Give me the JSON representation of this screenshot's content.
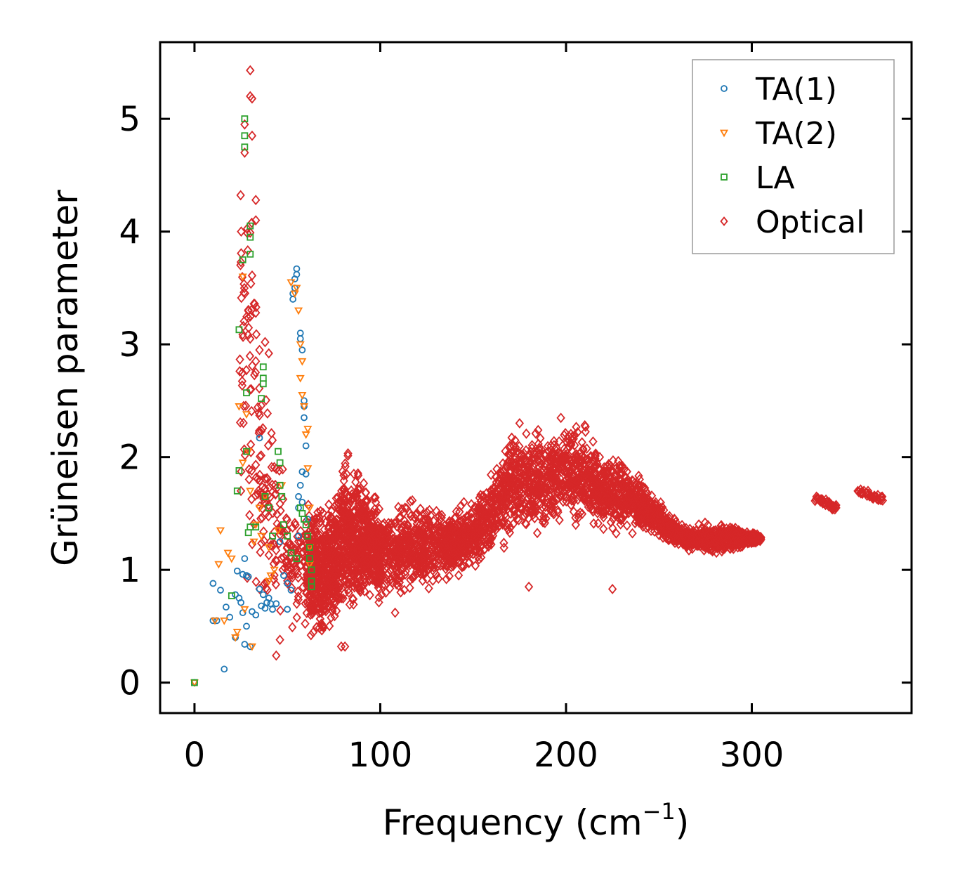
{
  "chart_data": {
    "type": "scatter",
    "title": "",
    "xlabel": "Frequency (cm",
    "xlabel_sup": "−1",
    "xlabel_close": ")",
    "ylabel": "Grüneisen parameter",
    "xlim": [
      -18.5,
      386
    ],
    "ylim": [
      -0.27,
      5.68
    ],
    "xticks": [
      0,
      100,
      200,
      300
    ],
    "xtick_labels": [
      "0",
      "100",
      "200",
      "300"
    ],
    "yticks": [
      0,
      1,
      2,
      3,
      4,
      5
    ],
    "ytick_labels": [
      "0",
      "1",
      "2",
      "3",
      "4",
      "5"
    ],
    "grid": false,
    "legend_position": "top-right",
    "series": [
      {
        "name": "TA(1)",
        "marker": "circle",
        "color": "#1f77b4",
        "points": [
          [
            0,
            0
          ],
          [
            10,
            0.55
          ],
          [
            10,
            0.88
          ],
          [
            12,
            0.55
          ],
          [
            14,
            0.82
          ],
          [
            16,
            0.12
          ],
          [
            17,
            0.67
          ],
          [
            19,
            0.58
          ],
          [
            22,
            0.4
          ],
          [
            22,
            0.78
          ],
          [
            23,
            0.99
          ],
          [
            24,
            0.75
          ],
          [
            25,
            0.71
          ],
          [
            26,
            0.62
          ],
          [
            26,
            0.96
          ],
          [
            27,
            0.34
          ],
          [
            27,
            1.1
          ],
          [
            28,
            0.95
          ],
          [
            28,
            0.5
          ],
          [
            29,
            0.94
          ],
          [
            30,
            0.32
          ],
          [
            31,
            0.63
          ],
          [
            33,
            0.6
          ],
          [
            35,
            0.83
          ],
          [
            35,
            2.17
          ],
          [
            36,
            0.68
          ],
          [
            37,
            0.78
          ],
          [
            38,
            0.66
          ],
          [
            39,
            0.71
          ],
          [
            40,
            0.75
          ],
          [
            41,
            0.7
          ],
          [
            42,
            0.65
          ],
          [
            44,
            0.7
          ],
          [
            46,
            1.25
          ],
          [
            48,
            0.95
          ],
          [
            50,
            0.88
          ],
          [
            50,
            0.65
          ],
          [
            52,
            0.82
          ],
          [
            53,
            3.4
          ],
          [
            53,
            3.45
          ],
          [
            54,
            3.5
          ],
          [
            54,
            3.58
          ],
          [
            55,
            3.62
          ],
          [
            55,
            3.67
          ],
          [
            56,
            1.3
          ],
          [
            56,
            1.55
          ],
          [
            57,
            3.1
          ],
          [
            57,
            3.05
          ],
          [
            58,
            2.95
          ],
          [
            58,
            1.6
          ],
          [
            59,
            2.5
          ],
          [
            59,
            2.45
          ],
          [
            59,
            2.35
          ],
          [
            60,
            1.85
          ],
          [
            60,
            2.1
          ],
          [
            61,
            1.45
          ],
          [
            58,
            1.87
          ],
          [
            57,
            1.75
          ],
          [
            56,
            1.65
          ]
        ]
      },
      {
        "name": "TA(2)",
        "marker": "triangle-down",
        "color": "#ff7f0e",
        "points": [
          [
            0,
            0
          ],
          [
            11,
            0.55
          ],
          [
            13,
            1.05
          ],
          [
            14,
            1.35
          ],
          [
            16,
            0.55
          ],
          [
            18,
            1.15
          ],
          [
            20,
            1.1
          ],
          [
            22,
            0.4
          ],
          [
            23,
            0.45
          ],
          [
            24,
            2.45
          ],
          [
            26,
            3.6
          ],
          [
            26,
            1.95
          ],
          [
            27,
            0.65
          ],
          [
            28,
            2.38
          ],
          [
            29,
            2.05
          ],
          [
            30,
            1.7
          ],
          [
            31,
            0.32
          ],
          [
            32,
            1.25
          ],
          [
            33,
            1.4
          ],
          [
            35,
            1.55
          ],
          [
            36,
            1.3
          ],
          [
            38,
            1.65
          ],
          [
            40,
            1.2
          ],
          [
            40,
            0.9
          ],
          [
            41,
            0.95
          ],
          [
            43,
            1.0
          ],
          [
            45,
            1.35
          ],
          [
            47,
            1.75
          ],
          [
            52,
            3.55
          ],
          [
            54,
            3.45
          ],
          [
            55,
            3.5
          ],
          [
            56,
            3.3
          ],
          [
            57,
            3.0
          ],
          [
            57,
            2.7
          ],
          [
            58,
            2.85
          ],
          [
            58,
            2.55
          ],
          [
            59,
            2.45
          ],
          [
            60,
            2.2
          ],
          [
            61,
            1.9
          ],
          [
            62,
            1.55
          ],
          [
            62,
            1.2
          ],
          [
            62,
            1.05
          ],
          [
            61,
            2.25
          ]
        ]
      },
      {
        "name": "LA",
        "marker": "square",
        "color": "#2ca02c",
        "points": [
          [
            0,
            0
          ],
          [
            20,
            0.77
          ],
          [
            23,
            1.7
          ],
          [
            24,
            1.88
          ],
          [
            24,
            3.13
          ],
          [
            26,
            3.75
          ],
          [
            27,
            4.75
          ],
          [
            27,
            4.85
          ],
          [
            27,
            5.0
          ],
          [
            28,
            2.57
          ],
          [
            28,
            2.05
          ],
          [
            29,
            1.33
          ],
          [
            30,
            4.05
          ],
          [
            30,
            3.95
          ],
          [
            30,
            3.8
          ],
          [
            30,
            1.38
          ],
          [
            33,
            1.38
          ],
          [
            36,
            2.52
          ],
          [
            37,
            2.8
          ],
          [
            37,
            2.7
          ],
          [
            37,
            2.65
          ],
          [
            38,
            1.65
          ],
          [
            40,
            1.55
          ],
          [
            42,
            1.3
          ],
          [
            45,
            2.05
          ],
          [
            46,
            1.95
          ],
          [
            46,
            1.75
          ],
          [
            47,
            1.65
          ],
          [
            48,
            1.4
          ],
          [
            50,
            1.3
          ],
          [
            52,
            1.15
          ],
          [
            55,
            1.1
          ],
          [
            57,
            1.55
          ],
          [
            58,
            1.5
          ],
          [
            59,
            1.45
          ],
          [
            60,
            1.4
          ],
          [
            61,
            1.3
          ],
          [
            62,
            1.2
          ],
          [
            62,
            1.1
          ],
          [
            63,
            1.0
          ],
          [
            63,
            0.9
          ],
          [
            63,
            0.85
          ]
        ]
      },
      {
        "name": "Optical",
        "marker": "diamond",
        "color": "#d62728",
        "envelope": [
          [
            24,
            0.5,
            5.0
          ],
          [
            28,
            0.3,
            5.43
          ],
          [
            32,
            0.3,
            4.3
          ],
          [
            36,
            0.4,
            3.0
          ],
          [
            40,
            0.45,
            2.8
          ],
          [
            45,
            0.5,
            2.2
          ],
          [
            50,
            0.4,
            1.9
          ],
          [
            55,
            0.35,
            1.8
          ],
          [
            60,
            0.35,
            1.75
          ],
          [
            65,
            0.3,
            1.7
          ],
          [
            70,
            0.3,
            1.65
          ],
          [
            75,
            0.32,
            1.7
          ],
          [
            80,
            0.35,
            2.2
          ],
          [
            85,
            0.45,
            2.1
          ],
          [
            90,
            0.55,
            2.0
          ],
          [
            95,
            0.6,
            1.85
          ],
          [
            100,
            0.65,
            1.65
          ],
          [
            110,
            0.65,
            1.65
          ],
          [
            120,
            0.75,
            1.75
          ],
          [
            130,
            0.8,
            1.6
          ],
          [
            140,
            0.85,
            1.6
          ],
          [
            150,
            0.95,
            1.65
          ],
          [
            160,
            1.05,
            1.95
          ],
          [
            170,
            1.15,
            2.4
          ],
          [
            180,
            1.2,
            2.3
          ],
          [
            190,
            1.25,
            2.35
          ],
          [
            200,
            1.3,
            2.45
          ],
          [
            210,
            1.35,
            2.35
          ],
          [
            220,
            1.3,
            2.1
          ],
          [
            230,
            1.3,
            2.05
          ],
          [
            240,
            1.3,
            1.85
          ],
          [
            250,
            1.25,
            1.65
          ],
          [
            260,
            1.15,
            1.45
          ],
          [
            270,
            1.15,
            1.4
          ],
          [
            280,
            1.1,
            1.45
          ],
          [
            290,
            1.15,
            1.42
          ],
          [
            300,
            1.22,
            1.35
          ],
          [
            305,
            1.25,
            1.3
          ]
        ],
        "cluster_a": [
          [
            335,
            1.63
          ],
          [
            337,
            1.62
          ],
          [
            339,
            1.6
          ],
          [
            341,
            1.58
          ],
          [
            343,
            1.56
          ],
          [
            345,
            1.55
          ]
        ],
        "cluster_b": [
          [
            358,
            1.7
          ],
          [
            360,
            1.69
          ],
          [
            362,
            1.68
          ],
          [
            364,
            1.66
          ],
          [
            366,
            1.65
          ],
          [
            368,
            1.64
          ],
          [
            370,
            1.63
          ]
        ],
        "outliers": [
          [
            30,
            5.43
          ],
          [
            30,
            5.2
          ],
          [
            31,
            5.18
          ],
          [
            31,
            4.85
          ],
          [
            27,
            4.7
          ],
          [
            27,
            4.95
          ],
          [
            33,
            4.28
          ],
          [
            33,
            4.1
          ],
          [
            30,
            3.99
          ],
          [
            25,
            3.73
          ],
          [
            31,
            3.61
          ],
          [
            32,
            3.36
          ],
          [
            33,
            3.28
          ],
          [
            30,
            3.05
          ],
          [
            33,
            2.85
          ],
          [
            35,
            2.95
          ],
          [
            38,
            3.02
          ],
          [
            40,
            2.92
          ],
          [
            35,
            2.37
          ],
          [
            42,
            2.15
          ],
          [
            44,
            0.24
          ],
          [
            46,
            0.38
          ],
          [
            79,
            0.32
          ],
          [
            81,
            0.32
          ],
          [
            108,
            0.62
          ],
          [
            145,
            1.6
          ],
          [
            180,
            0.85
          ],
          [
            225,
            0.83
          ],
          [
            230,
            1.45
          ],
          [
            175,
            2.3
          ]
        ]
      }
    ]
  }
}
